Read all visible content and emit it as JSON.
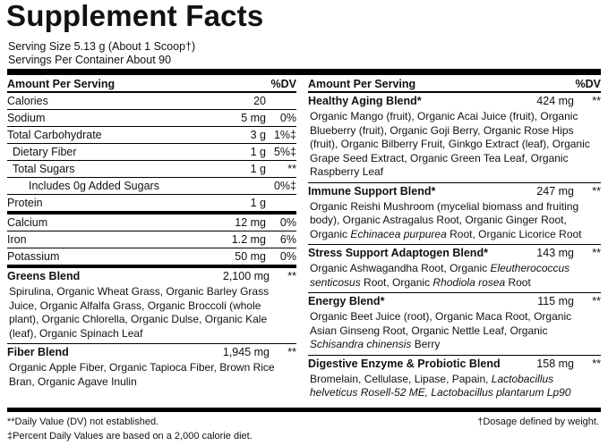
{
  "title": "Supplement Facts",
  "serving_size": "Serving Size 5.13 g (About 1 Scoop†)",
  "servings": "Servings Per Container About 90",
  "left": {
    "header": {
      "amount": "Amount Per Serving",
      "dv": "%DV"
    },
    "sections": [
      {
        "rows": [
          {
            "name": "Calories",
            "amount": "20"
          },
          {
            "name": "Sodium",
            "amount": "5 mg",
            "dv": "0%"
          },
          {
            "name": "Total Carbohydrate",
            "amount": "3 g",
            "dv": "1%‡",
            "sub": [
              {
                "name": "Dietary Fiber",
                "amount": "1 g",
                "dv": "5%‡"
              },
              {
                "name": "Total Sugars",
                "amount": "1 g",
                "dv": "**",
                "sub": [
                  {
                    "name": "Includes 0g Added Sugars",
                    "dv": "0%‡"
                  }
                ]
              }
            ]
          },
          {
            "name": "Protein",
            "amount": "1 g"
          }
        ]
      },
      {
        "rows": [
          {
            "name": "Calcium",
            "amount": "12 mg",
            "dv": "0%"
          },
          {
            "name": "Iron",
            "amount": "1.2 mg",
            "dv": "6%"
          },
          {
            "name": "Potassium",
            "amount": "50 mg",
            "dv": "0%"
          }
        ]
      },
      {
        "blends": [
          {
            "name": "Greens Blend",
            "amount": "2,100 mg",
            "dv": "**",
            "description": [
              {
                "text": "Spirulina, Organic Wheat Grass, Organic Barley Grass Juice, Organic Alfalfa Grass, Organic Broccoli (whole plant), Organic Chlorella, Organic Dulse, Organic Kale (leaf), Organic Spinach Leaf"
              }
            ]
          },
          {
            "name": "Fiber Blend",
            "amount": "1,945 mg",
            "dv": "**",
            "description": [
              {
                "text": "Organic Apple Fiber, Organic Tapioca Fiber, Brown Rice Bran, Organic Agave Inulin"
              }
            ]
          }
        ]
      }
    ]
  },
  "right": {
    "header": {
      "amount": "Amount Per Serving",
      "dv": "%DV"
    },
    "blends": [
      {
        "name": "Healthy Aging Blend*",
        "amount": "424 mg",
        "dv": "**",
        "description": [
          {
            "text": "Organic Mango (fruit), Organic Acai Juice (fruit), Organic Blueberry (fruit), Organic Goji Berry, Organic Rose Hips (fruit), Organic Bilberry Fruit, Ginkgo Extract (leaf), Organic Grape Seed Extract, Organic Green Tea Leaf, Organic Raspberry Leaf"
          }
        ]
      },
      {
        "name": "Immune Support Blend*",
        "amount": "247 mg",
        "dv": "**",
        "description": [
          {
            "text": "Organic Reishi Mushroom (mycelial biomass and fruiting body), Organic Astragalus Root, Organic Ginger Root, Organic "
          },
          {
            "text": "Echinacea purpurea",
            "italic": true
          },
          {
            "text": " Root, Organic Licorice Root"
          }
        ]
      },
      {
        "name": "Stress Support Adaptogen Blend*",
        "amount": "143 mg",
        "dv": "**",
        "description": [
          {
            "text": "Organic Ashwagandha Root, Organic "
          },
          {
            "text": "Eleutherococcus senticosus",
            "italic": true
          },
          {
            "text": " Root, Organic "
          },
          {
            "text": "Rhodiola rosea",
            "italic": true
          },
          {
            "text": " Root"
          }
        ]
      },
      {
        "name": "Energy Blend*",
        "amount": "115 mg",
        "dv": "**",
        "description": [
          {
            "text": "Organic Beet Juice (root), Organic Maca Root, Organic Asian Ginseng Root, Organic Nettle Leaf, Organic "
          },
          {
            "text": "Schisandra chinensis",
            "italic": true
          },
          {
            "text": " Berry"
          }
        ]
      },
      {
        "name": "Digestive Enzyme & Probiotic Blend",
        "amount": "158 mg",
        "dv": "**",
        "description": [
          {
            "text": "Bromelain, Cellulase, Lipase, Papain, "
          },
          {
            "text": "Lactobacillus helveticus Rosell-52 ME, Lactobacillus plantarum Lp90",
            "italic": true
          }
        ]
      }
    ]
  },
  "footnotes": {
    "left": [
      "**Daily Value (DV) not established.",
      "‡Percent Daily Values are based on a 2,000 calorie diet."
    ],
    "right": "†Dosage defined by weight."
  }
}
